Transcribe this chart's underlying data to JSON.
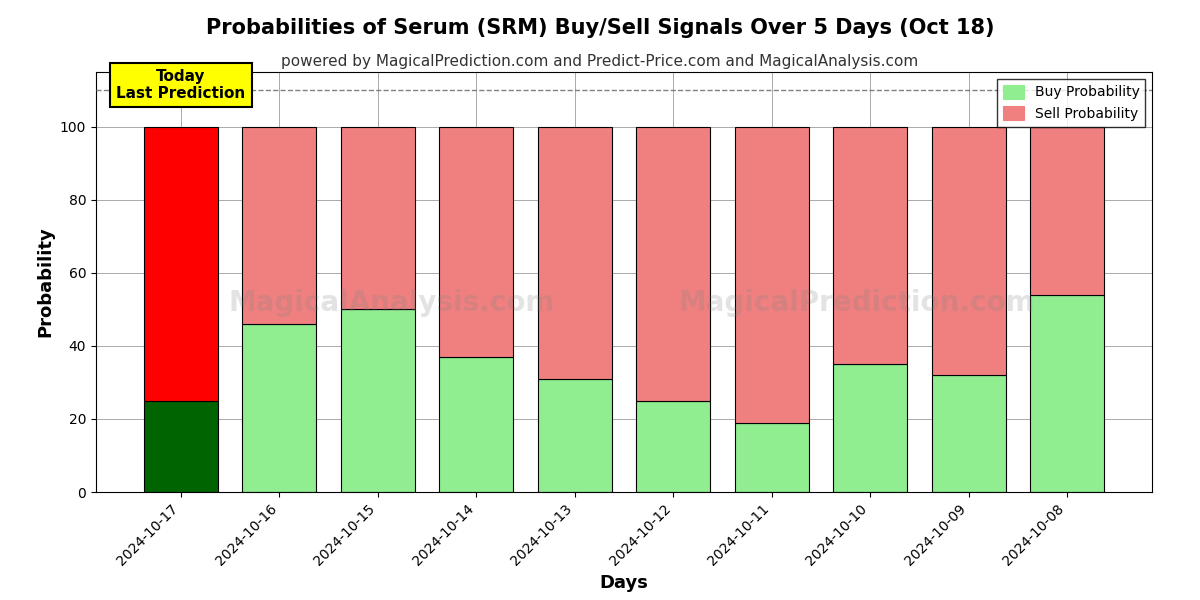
{
  "title": "Probabilities of Serum (SRM) Buy/Sell Signals Over 5 Days (Oct 18)",
  "subtitle": "powered by MagicalPrediction.com and Predict-Price.com and MagicalAnalysis.com",
  "xlabel": "Days",
  "ylabel": "Probability",
  "categories": [
    "2024-10-17",
    "2024-10-16",
    "2024-10-15",
    "2024-10-14",
    "2024-10-13",
    "2024-10-12",
    "2024-10-11",
    "2024-10-10",
    "2024-10-09",
    "2024-10-08"
  ],
  "buy_values": [
    25,
    46,
    50,
    37,
    31,
    25,
    19,
    35,
    32,
    54
  ],
  "sell_values": [
    75,
    54,
    50,
    63,
    69,
    75,
    81,
    65,
    68,
    46
  ],
  "buy_colors": [
    "#006400",
    "#90EE90",
    "#90EE90",
    "#90EE90",
    "#90EE90",
    "#90EE90",
    "#90EE90",
    "#90EE90",
    "#90EE90",
    "#90EE90"
  ],
  "sell_colors": [
    "#FF0000",
    "#F08080",
    "#F08080",
    "#F08080",
    "#F08080",
    "#F08080",
    "#F08080",
    "#F08080",
    "#F08080",
    "#F08080"
  ],
  "legend_buy_color": "#90EE90",
  "legend_sell_color": "#F08080",
  "today_box_color": "#FFFF00",
  "today_text": "Today\nLast Prediction",
  "dashed_line_y": 110,
  "ylim": [
    0,
    115
  ],
  "yticks": [
    0,
    20,
    40,
    60,
    80,
    100
  ],
  "watermark_lines": [
    "MagicalAnalysis.com",
    "MagicalPrediction.com"
  ],
  "bar_edgecolor": "#000000",
  "bar_linewidth": 0.8,
  "grid_color": "#aaaaaa",
  "background_color": "#ffffff",
  "title_fontsize": 15,
  "subtitle_fontsize": 11,
  "axis_label_fontsize": 13,
  "tick_fontsize": 10
}
